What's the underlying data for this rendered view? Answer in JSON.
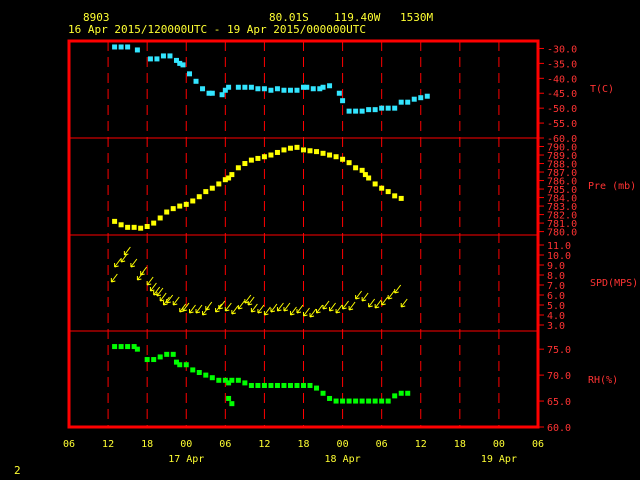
{
  "header": {
    "station": "8903",
    "lat": "80.01S",
    "lon": "119.40W",
    "elev": "1530M",
    "range": "16 Apr 2015/120000UTC - 19 Apr 2015/000000UTC"
  },
  "footer": {
    "page": "2"
  },
  "colors": {
    "frame": "#ff0000",
    "grid": "#ff0000",
    "label_text": "#ff3333",
    "header_text": "#ffff33",
    "temperature": "#33e5ff",
    "pressure": "#ffff00",
    "wind": "#ffff00",
    "humidity": "#00ff00"
  },
  "chart_data": {
    "type": "scatter",
    "x_unit": "hours since 16 Apr 2015 06UTC",
    "x_ticks": [
      "06",
      "12",
      "18",
      "00",
      "06",
      "12",
      "18",
      "00",
      "06",
      "12",
      "18",
      "00",
      "06"
    ],
    "x_date_labels": [
      {
        "hour": 18,
        "label": "17 Apr"
      },
      {
        "hour": 42,
        "label": "18 Apr"
      },
      {
        "hour": 66,
        "label": "19 Apr"
      }
    ],
    "xlim": [
      0,
      72
    ],
    "panels": [
      {
        "name": "T(C)",
        "ylim": [
          -60,
          -27.5
        ],
        "ticks": [
          "-30.0",
          "-35.0",
          "-40.0",
          "-45.0",
          "-50.0",
          "-55.0",
          "-60.0"
        ],
        "tick_values": [
          -30,
          -35,
          -40,
          -45,
          -50,
          -55,
          -60
        ],
        "points": [
          [
            7,
            -29.5
          ],
          [
            8,
            -29.5
          ],
          [
            9,
            -29.5
          ],
          [
            10.5,
            -30.5
          ],
          [
            12.5,
            -33.5
          ],
          [
            13.5,
            -33.5
          ],
          [
            14.5,
            -32.5
          ],
          [
            15.5,
            -32.5
          ],
          [
            16.5,
            -34
          ],
          [
            17,
            -35
          ],
          [
            17.5,
            -35.5
          ],
          [
            18.5,
            -38.5
          ],
          [
            19.5,
            -41
          ],
          [
            20.5,
            -43.5
          ],
          [
            21.5,
            -45
          ],
          [
            22,
            -45
          ],
          [
            23.5,
            -45.5
          ],
          [
            24,
            -44
          ],
          [
            24.5,
            -43
          ],
          [
            26,
            -43
          ],
          [
            27,
            -43
          ],
          [
            28,
            -43
          ],
          [
            29,
            -43.5
          ],
          [
            30,
            -43.5
          ],
          [
            31,
            -44
          ],
          [
            32,
            -43.5
          ],
          [
            33,
            -44
          ],
          [
            34,
            -44
          ],
          [
            35,
            -44
          ],
          [
            36,
            -43
          ],
          [
            36.5,
            -43
          ],
          [
            37.5,
            -43.5
          ],
          [
            38.5,
            -43.5
          ],
          [
            39,
            -43
          ],
          [
            40,
            -42.5
          ],
          [
            41.5,
            -45
          ],
          [
            42,
            -47.5
          ],
          [
            43,
            -51
          ],
          [
            44,
            -51
          ],
          [
            45,
            -51
          ],
          [
            46,
            -50.5
          ],
          [
            47,
            -50.5
          ],
          [
            48,
            -50
          ],
          [
            49,
            -50
          ],
          [
            50,
            -50
          ],
          [
            51,
            -48
          ],
          [
            52,
            -48
          ],
          [
            53,
            -47
          ],
          [
            54,
            -46.5
          ],
          [
            55,
            -46
          ]
        ]
      },
      {
        "name": "Pre (mb)",
        "ylim": [
          779.6,
          791.0
        ],
        "ticks": [
          "790.0",
          "789.0",
          "788.0",
          "787.0",
          "786.0",
          "785.0",
          "784.0",
          "783.0",
          "782.0",
          "781.0",
          "780.0"
        ],
        "tick_values": [
          790,
          789,
          788,
          787,
          786,
          785,
          784,
          783,
          782,
          781,
          780
        ],
        "points": [
          [
            7,
            781.2
          ],
          [
            8,
            780.8
          ],
          [
            9,
            780.5
          ],
          [
            10,
            780.5
          ],
          [
            11,
            780.4
          ],
          [
            12,
            780.6
          ],
          [
            13,
            781.0
          ],
          [
            14,
            781.6
          ],
          [
            15,
            782.3
          ],
          [
            16,
            782.7
          ],
          [
            17,
            783.0
          ],
          [
            18,
            783.2
          ],
          [
            19,
            783.6
          ],
          [
            20,
            784.1
          ],
          [
            21,
            784.7
          ],
          [
            22,
            785.1
          ],
          [
            23,
            785.6
          ],
          [
            24,
            786.1
          ],
          [
            24.5,
            786.3
          ],
          [
            25,
            786.7
          ],
          [
            26,
            787.5
          ],
          [
            27,
            788.0
          ],
          [
            28,
            788.4
          ],
          [
            29,
            788.6
          ],
          [
            30,
            788.8
          ],
          [
            31,
            789.0
          ],
          [
            32,
            789.3
          ],
          [
            33,
            789.6
          ],
          [
            34,
            789.8
          ],
          [
            35,
            789.9
          ],
          [
            36,
            789.6
          ],
          [
            37,
            789.5
          ],
          [
            38,
            789.4
          ],
          [
            39,
            789.2
          ],
          [
            40,
            789.0
          ],
          [
            41,
            788.8
          ],
          [
            42,
            788.5
          ],
          [
            43,
            788.1
          ],
          [
            44,
            787.5
          ],
          [
            45,
            787.2
          ],
          [
            45.5,
            786.7
          ],
          [
            46,
            786.3
          ],
          [
            47,
            785.6
          ],
          [
            48,
            785.1
          ],
          [
            49,
            784.7
          ],
          [
            50,
            784.2
          ],
          [
            51,
            783.9
          ]
        ]
      },
      {
        "name": "SPD(MPS)",
        "ylim": [
          2.4,
          12.0
        ],
        "ticks": [
          "11.0",
          "10.0",
          "9.0",
          "8.0",
          "7.0",
          "6.0",
          "5.0",
          "4.0",
          "3.0"
        ],
        "tick_values": [
          11,
          10,
          9,
          8,
          7,
          6,
          5,
          4,
          3
        ],
        "points": [
          [
            6.5,
            7.3
          ],
          [
            7,
            8.8
          ],
          [
            8,
            9.3
          ],
          [
            8.5,
            10.0
          ],
          [
            9.5,
            8.8
          ],
          [
            10.5,
            7.5
          ],
          [
            11,
            8.0
          ],
          [
            12,
            7.0
          ],
          [
            12.5,
            6.4
          ],
          [
            13,
            6.0
          ],
          [
            13.5,
            5.9
          ],
          [
            14,
            5.4
          ],
          [
            14.5,
            5.0
          ],
          [
            15,
            5.2
          ],
          [
            16,
            5.0
          ],
          [
            17,
            4.3
          ],
          [
            17.5,
            4.4
          ],
          [
            18.5,
            4.2
          ],
          [
            19.5,
            4.2
          ],
          [
            20.5,
            4.0
          ],
          [
            21,
            4.5
          ],
          [
            22.5,
            4.3
          ],
          [
            23,
            4.6
          ],
          [
            24,
            4.4
          ],
          [
            25,
            4.1
          ],
          [
            26,
            4.6
          ],
          [
            27,
            5.2
          ],
          [
            27.5,
            5.0
          ],
          [
            28,
            4.3
          ],
          [
            29,
            4.2
          ],
          [
            30,
            4.0
          ],
          [
            31,
            4.3
          ],
          [
            32,
            4.4
          ],
          [
            33,
            4.4
          ],
          [
            34,
            4.0
          ],
          [
            35,
            4.2
          ],
          [
            36,
            3.9
          ],
          [
            37,
            3.8
          ],
          [
            38,
            4.2
          ],
          [
            39,
            4.6
          ],
          [
            40,
            4.4
          ],
          [
            41,
            4.2
          ],
          [
            42,
            4.6
          ],
          [
            43,
            4.5
          ],
          [
            44,
            5.6
          ],
          [
            45,
            5.4
          ],
          [
            46,
            4.8
          ],
          [
            47,
            4.7
          ],
          [
            48,
            5.0
          ],
          [
            49,
            5.6
          ],
          [
            50,
            6.2
          ],
          [
            51,
            4.8
          ]
        ]
      },
      {
        "name": "RH(%)",
        "ylim": [
          60,
          78.5
        ],
        "ticks": [
          "75.0",
          "70.0",
          "65.0",
          "60.0"
        ],
        "tick_values": [
          75,
          70,
          65,
          60
        ],
        "points": [
          [
            7,
            75.5
          ],
          [
            8,
            75.5
          ],
          [
            9,
            75.5
          ],
          [
            10,
            75.5
          ],
          [
            10.5,
            75
          ],
          [
            12,
            73
          ],
          [
            13,
            73
          ],
          [
            14,
            73.5
          ],
          [
            15,
            74
          ],
          [
            16,
            74
          ],
          [
            16.5,
            72.5
          ],
          [
            17,
            72
          ],
          [
            18,
            72
          ],
          [
            19,
            71
          ],
          [
            20,
            70.5
          ],
          [
            21,
            70
          ],
          [
            22,
            69.5
          ],
          [
            23,
            69
          ],
          [
            24,
            69
          ],
          [
            24.5,
            68.5
          ],
          [
            25,
            69
          ],
          [
            26,
            69
          ],
          [
            27,
            68.5
          ],
          [
            28,
            68
          ],
          [
            29,
            68
          ],
          [
            30,
            68
          ],
          [
            31,
            68
          ],
          [
            32,
            68
          ],
          [
            33,
            68
          ],
          [
            34,
            68
          ],
          [
            35,
            68
          ],
          [
            36,
            68
          ],
          [
            37,
            68
          ],
          [
            38,
            67.5
          ],
          [
            39,
            66.5
          ],
          [
            40,
            65.5
          ],
          [
            41,
            65
          ],
          [
            42,
            65
          ],
          [
            43,
            65
          ],
          [
            44,
            65
          ],
          [
            45,
            65
          ],
          [
            46,
            65
          ],
          [
            47,
            65
          ],
          [
            48,
            65
          ],
          [
            49,
            65
          ],
          [
            50,
            66
          ],
          [
            51,
            66.5
          ],
          [
            52,
            66.5
          ],
          [
            24.5,
            65.5
          ],
          [
            25,
            64.5
          ]
        ]
      }
    ]
  }
}
